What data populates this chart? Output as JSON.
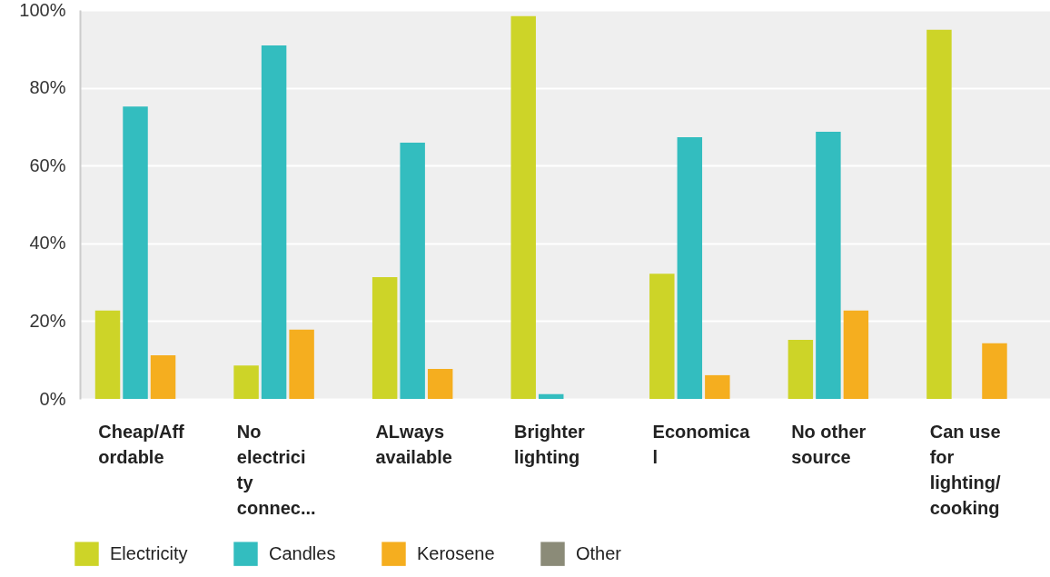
{
  "chart_data": {
    "type": "bar",
    "categories": [
      "Cheap/Affordable",
      "No electricity connec...",
      "ALways available",
      "Brighter lighting",
      "Economical",
      "No other source",
      "Can use for lighting/cooking"
    ],
    "series": [
      {
        "name": "Electricity",
        "color": "#cdd428",
        "values": [
          22.7,
          8.6,
          31.3,
          98.4,
          32.2,
          15.2,
          94.9
        ]
      },
      {
        "name": "Candles",
        "color": "#33bdbf",
        "values": [
          75.2,
          90.9,
          65.9,
          1.2,
          67.3,
          68.7,
          0
        ]
      },
      {
        "name": "Kerosene",
        "color": "#f5ae1f",
        "values": [
          11.2,
          17.8,
          7.7,
          0,
          6.1,
          22.7,
          14.3
        ]
      },
      {
        "name": "Other",
        "color": "#8b8b78",
        "values": [
          0,
          0,
          0,
          0,
          0,
          0,
          0
        ]
      }
    ],
    "ylim": [
      0,
      100
    ],
    "yticks": [
      {
        "value": 0,
        "label": "0%"
      },
      {
        "value": 20,
        "label": "20%"
      },
      {
        "value": 40,
        "label": "40%"
      },
      {
        "value": 60,
        "label": "60%"
      },
      {
        "value": 80,
        "label": "80%"
      },
      {
        "value": 100,
        "label": "100%"
      }
    ],
    "grid": "y",
    "legend": "bottom"
  }
}
